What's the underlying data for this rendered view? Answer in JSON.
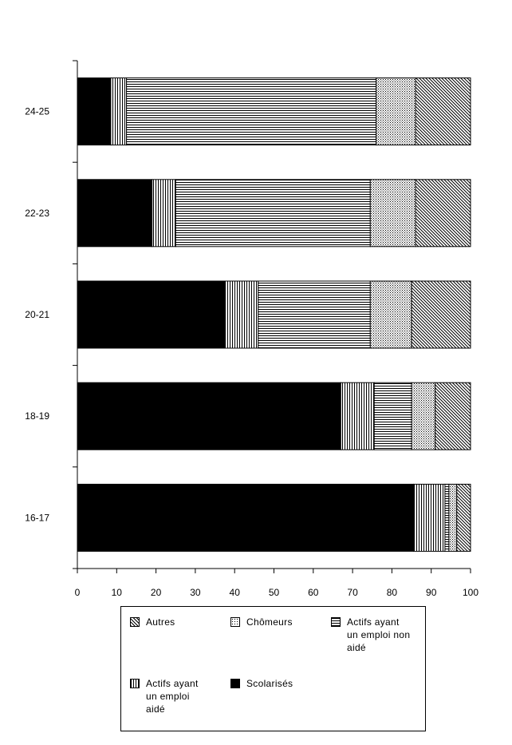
{
  "chart_data": {
    "type": "bar",
    "orientation": "horizontal",
    "stacked": true,
    "categories": [
      "16-17",
      "18-19",
      "20-21",
      "22-23",
      "24-25"
    ],
    "series": [
      {
        "name": "Scolarisés",
        "values": [
          85.5,
          67,
          37.5,
          19,
          8.5
        ],
        "pattern": "solid",
        "color": "#000000"
      },
      {
        "name": "Actifs ayant un emploi aidé",
        "values": [
          8,
          8.5,
          8.5,
          6,
          4
        ],
        "pattern": "vertical"
      },
      {
        "name": "Actifs ayant un emploi non aidé",
        "values": [
          1,
          9.5,
          28.5,
          49.5,
          63.5
        ],
        "pattern": "horizontal"
      },
      {
        "name": "Chômeurs",
        "values": [
          2,
          6,
          10.5,
          11.5,
          10
        ],
        "pattern": "dots"
      },
      {
        "name": "Autres",
        "values": [
          3.5,
          9,
          15,
          14,
          14
        ],
        "pattern": "diagonal"
      }
    ],
    "xlim": [
      0,
      100
    ],
    "xticks": [
      0,
      10,
      20,
      30,
      40,
      50,
      60,
      70,
      80,
      90,
      100
    ],
    "title": "",
    "xlabel": "",
    "ylabel": "",
    "grid": false,
    "legend_position": "bottom"
  },
  "legend": {
    "items": [
      {
        "pattern": "diagonal",
        "lines": [
          "Autres"
        ]
      },
      {
        "pattern": "dots",
        "lines": [
          "Chômeurs"
        ]
      },
      {
        "pattern": "horizontal",
        "lines": [
          "Actifs ayant",
          "un emploi non",
          "aidé"
        ]
      },
      {
        "pattern": "vertical",
        "lines": [
          "Actifs ayant",
          "un emploi",
          "aidé"
        ]
      },
      {
        "pattern": "solid",
        "lines": [
          "Scolarisés"
        ]
      }
    ]
  }
}
